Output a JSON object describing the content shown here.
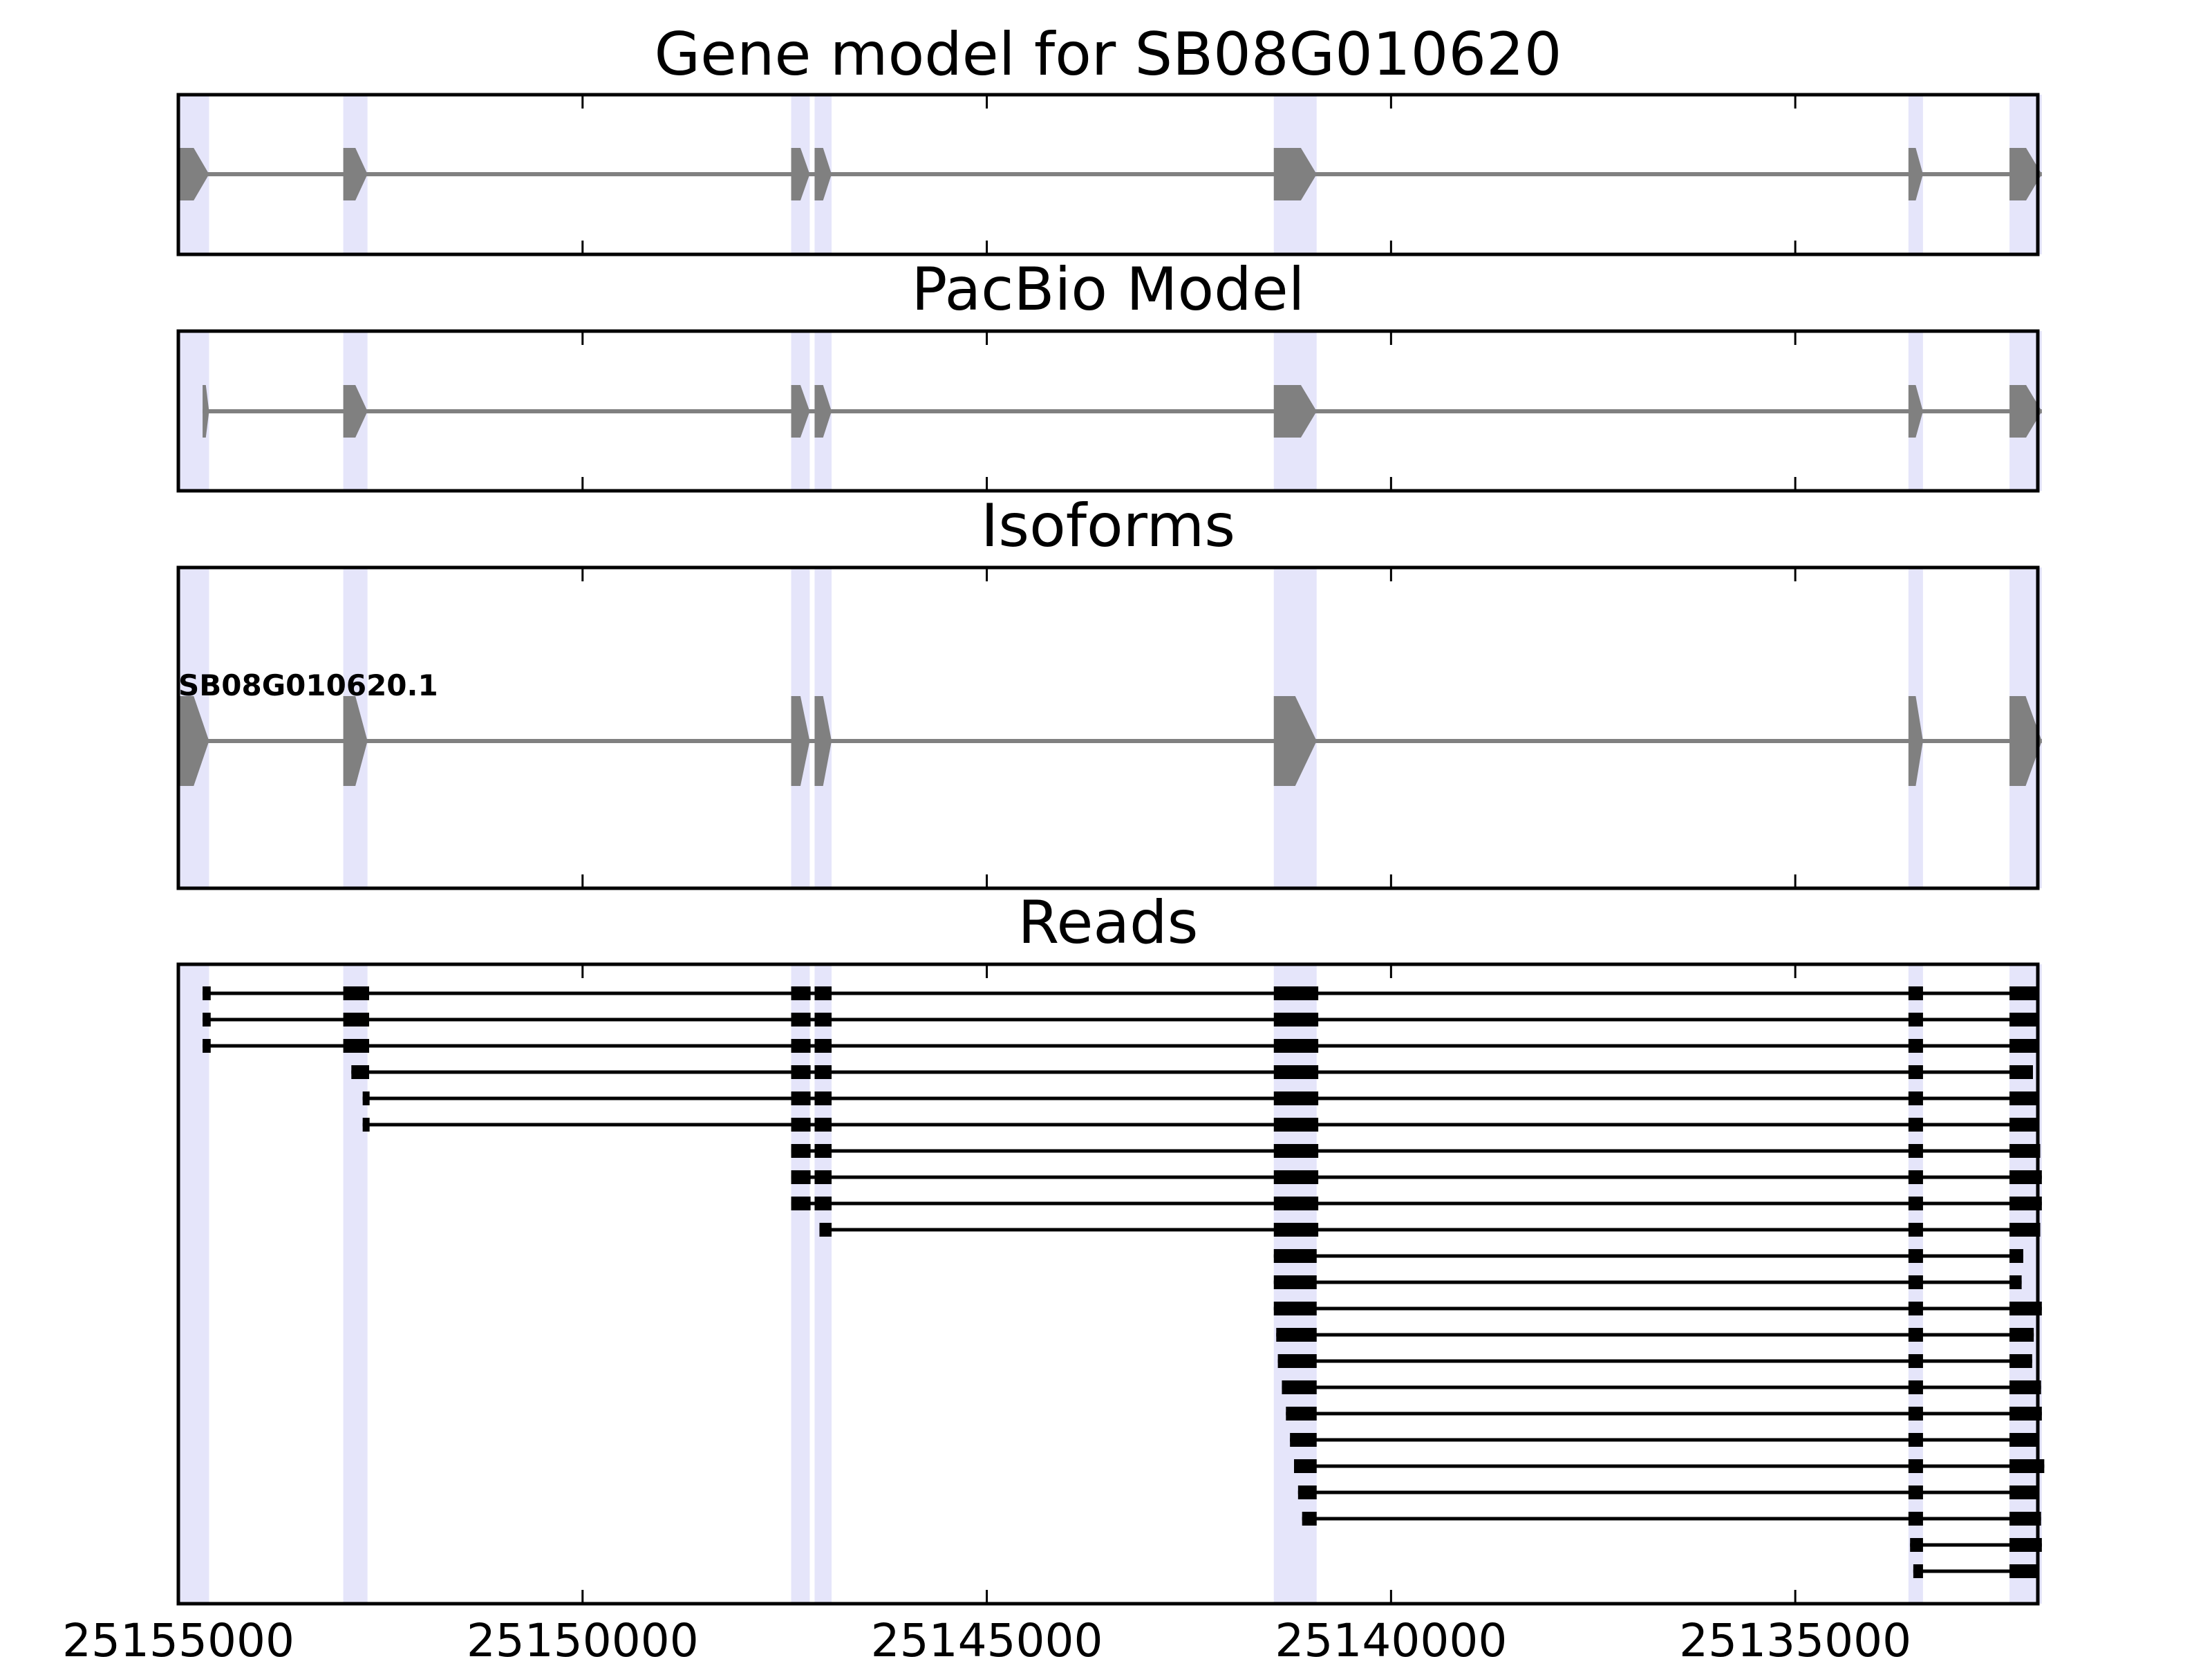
{
  "figure": {
    "axis": {
      "orientation": "reversed",
      "xlim": [
        25155000,
        25132000
      ],
      "ticks": [
        25155000,
        25150000,
        25145000,
        25140000,
        25135000
      ],
      "tick_labels": [
        "25155000",
        "25150000",
        "25145000",
        "25140000",
        "25135000"
      ]
    },
    "colors": {
      "highlight": "#e5e5fa",
      "feature": "#808080",
      "read": "#000000",
      "frame": "#000000"
    },
    "highlight_regions": [
      [
        25155000,
        25154620
      ],
      [
        25152960,
        25152660
      ],
      [
        25147420,
        25147190
      ],
      [
        25147130,
        25146920
      ],
      [
        25141450,
        25140920
      ],
      [
        25133600,
        25133420
      ],
      [
        25132350,
        25131950
      ]
    ],
    "exons": [
      [
        25155000,
        25154620
      ],
      [
        25152960,
        25152660
      ],
      [
        25147420,
        25147190
      ],
      [
        25147130,
        25146920
      ],
      [
        25141450,
        25140920
      ],
      [
        25133600,
        25133420
      ],
      [
        25132350,
        25131950
      ]
    ],
    "panels": [
      {
        "key": "gene_model",
        "title": "Gene model for SB08G010620",
        "first_exon_start": 25155000,
        "label": ""
      },
      {
        "key": "pacbio",
        "title": "PacBio Model",
        "first_exon_start": 25154700,
        "label": ""
      },
      {
        "key": "isoforms",
        "title": "Isoforms",
        "first_exon_start": 25155000,
        "label": "SB08G010620.1"
      },
      {
        "key": "reads",
        "title": "Reads",
        "label": ""
      }
    ],
    "reads": [
      [
        [
          25154700,
          25154600
        ],
        [
          25152960,
          25152640
        ],
        [
          25147420,
          25147180
        ],
        [
          25147130,
          25146920
        ],
        [
          25141450,
          25140900
        ],
        [
          25133600,
          25133420
        ],
        [
          25132350,
          25132000
        ]
      ],
      [
        [
          25154700,
          25154600
        ],
        [
          25152960,
          25152640
        ],
        [
          25147420,
          25147180
        ],
        [
          25147130,
          25146920
        ],
        [
          25141450,
          25140900
        ],
        [
          25133600,
          25133420
        ],
        [
          25132350,
          25131980
        ]
      ],
      [
        [
          25154700,
          25154600
        ],
        [
          25152960,
          25152640
        ],
        [
          25147420,
          25147180
        ],
        [
          25147130,
          25146920
        ],
        [
          25141450,
          25140900
        ],
        [
          25133600,
          25133420
        ],
        [
          25132350,
          25131980
        ]
      ],
      [
        [
          25152860,
          25152640
        ],
        [
          25147420,
          25147180
        ],
        [
          25147130,
          25146920
        ],
        [
          25141450,
          25140900
        ],
        [
          25133600,
          25133420
        ],
        [
          25132350,
          25132060
        ]
      ],
      [
        [
          25152720,
          25152640
        ],
        [
          25147420,
          25147180
        ],
        [
          25147130,
          25146920
        ],
        [
          25141450,
          25140900
        ],
        [
          25133600,
          25133420
        ],
        [
          25132350,
          25131990
        ]
      ],
      [
        [
          25152720,
          25152640
        ],
        [
          25147420,
          25147180
        ],
        [
          25147130,
          25146920
        ],
        [
          25141450,
          25140900
        ],
        [
          25133600,
          25133420
        ],
        [
          25132350,
          25131980
        ]
      ],
      [
        [
          25147420,
          25147180
        ],
        [
          25147130,
          25146920
        ],
        [
          25141450,
          25140900
        ],
        [
          25133600,
          25133420
        ],
        [
          25132350,
          25131970
        ]
      ],
      [
        [
          25147420,
          25147180
        ],
        [
          25147130,
          25146920
        ],
        [
          25141450,
          25140900
        ],
        [
          25133600,
          25133420
        ],
        [
          25132350,
          25131950
        ]
      ],
      [
        [
          25147420,
          25147180
        ],
        [
          25147130,
          25146920
        ],
        [
          25141450,
          25140900
        ],
        [
          25133600,
          25133420
        ],
        [
          25132350,
          25131950
        ]
      ],
      [
        [
          25147070,
          25146920
        ],
        [
          25141450,
          25140900
        ],
        [
          25133600,
          25133420
        ],
        [
          25132350,
          25131970
        ]
      ],
      [
        [
          25141450,
          25140920
        ],
        [
          25133600,
          25133420
        ],
        [
          25132350,
          25132180
        ]
      ],
      [
        [
          25141450,
          25140920
        ],
        [
          25133600,
          25133420
        ],
        [
          25132350,
          25132200
        ]
      ],
      [
        [
          25141450,
          25140920
        ],
        [
          25133600,
          25133420
        ],
        [
          25132350,
          25131950
        ]
      ],
      [
        [
          25141420,
          25140920
        ],
        [
          25133600,
          25133420
        ],
        [
          25132350,
          25132050
        ]
      ],
      [
        [
          25141400,
          25140920
        ],
        [
          25133600,
          25133420
        ],
        [
          25132350,
          25132070
        ]
      ],
      [
        [
          25141350,
          25140920
        ],
        [
          25133600,
          25133420
        ],
        [
          25132350,
          25131960
        ]
      ],
      [
        [
          25141300,
          25140920
        ],
        [
          25133600,
          25133420
        ],
        [
          25132350,
          25131950
        ]
      ],
      [
        [
          25141250,
          25140920
        ],
        [
          25133600,
          25133420
        ],
        [
          25132350,
          25131980
        ]
      ],
      [
        [
          25141200,
          25140920
        ],
        [
          25133600,
          25133420
        ],
        [
          25132350,
          25131920
        ]
      ],
      [
        [
          25141150,
          25140920
        ],
        [
          25133600,
          25133420
        ],
        [
          25132350,
          25131980
        ]
      ],
      [
        [
          25141100,
          25140920
        ],
        [
          25133600,
          25133420
        ],
        [
          25132350,
          25131960
        ]
      ],
      [
        [
          25133580,
          25133420
        ],
        [
          25132350,
          25131950
        ]
      ],
      [
        [
          25133540,
          25133420
        ],
        [
          25132350,
          25131990
        ]
      ]
    ]
  }
}
